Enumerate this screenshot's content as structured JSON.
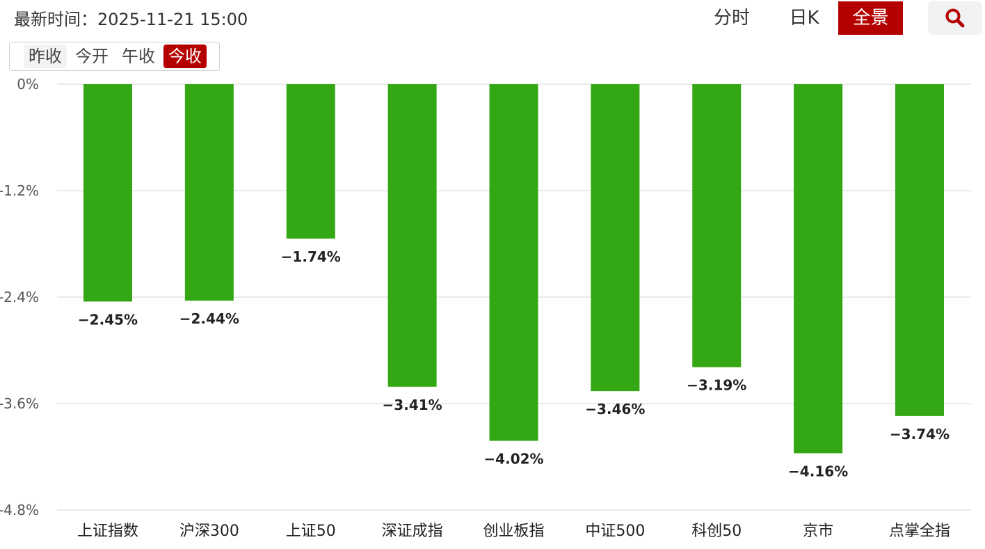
{
  "header": {
    "update_label": "最新时间：",
    "update_time": "2025-11-21 15:00",
    "view_tabs": [
      {
        "label": "分时",
        "active": false
      },
      {
        "label": "日K",
        "active": false
      },
      {
        "label": "全景",
        "active": true
      }
    ],
    "search_icon": "search-icon"
  },
  "time_toggle": {
    "options": [
      {
        "label": "昨收",
        "active": false
      },
      {
        "label": "今开",
        "active": false
      },
      {
        "label": "午收",
        "active": false
      },
      {
        "label": "今收",
        "active": true
      }
    ]
  },
  "colors": {
    "bar": "#33a714",
    "accent": "#b50000",
    "grid": "#e3e3e3"
  },
  "chart_data": {
    "type": "bar",
    "categories": [
      "上证指数",
      "沪深300",
      "上证50",
      "深证成指",
      "创业板指",
      "中证500",
      "科创50",
      "京市",
      "点掌全指"
    ],
    "values": [
      -2.45,
      -2.44,
      -1.74,
      -3.41,
      -4.02,
      -3.46,
      -3.19,
      -4.16,
      -3.74
    ],
    "value_labels": [
      "−2.45%",
      "−2.44%",
      "−1.74%",
      "−3.41%",
      "−4.02%",
      "−3.46%",
      "−3.19%",
      "−4.16%",
      "−3.74%"
    ],
    "yticks": [
      0,
      -1.2,
      -2.4,
      -3.6,
      -4.8
    ],
    "ytick_labels": [
      "0%",
      "-1.2%",
      "-2.4%",
      "-3.6%",
      "-4.8%"
    ],
    "ylim": [
      -4.8,
      0
    ],
    "grid": true,
    "legend": "none"
  }
}
